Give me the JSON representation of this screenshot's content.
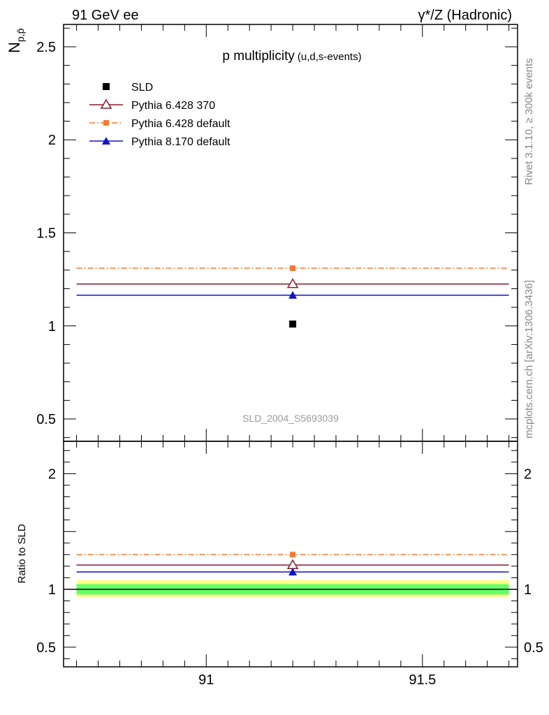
{
  "header": {
    "left": "91 GeV ee",
    "right": "γ*/Z (Hadronic)"
  },
  "side_text": {
    "rivet": "Rivet 3.1.10, ≥ 300k events",
    "mcplots": "mcplots.cern.ch [arXiv:1306.3436]"
  },
  "plot_title": {
    "main": "p multiplicity",
    "sub": "(u,d,s-events)"
  },
  "analysis_id": "SLD_2004_S5693039",
  "chart_data": [
    {
      "panel": "main",
      "type": "scatter",
      "ylabel": "N_{p,p̄}",
      "xlim": [
        90.67,
        91.72
      ],
      "ylim": [
        0.38,
        2.62
      ],
      "yticks": [
        0.5,
        1,
        1.5,
        2,
        2.5
      ],
      "ytick_labels": [
        "0.5",
        "1",
        "1.5",
        "2",
        "2.5"
      ],
      "legend_position": "top-left",
      "series": [
        {
          "name": "SLD",
          "x": [
            91.2
          ],
          "y": [
            1.01
          ],
          "xerr": [
            0,
            0
          ],
          "color": "#000000",
          "marker": "square"
        },
        {
          "name": "Pythia 6.428 370",
          "x": [
            91.2
          ],
          "y": [
            1.225
          ],
          "xerr": [
            91.2,
            91.2
          ],
          "color": "#8b1a2a",
          "marker": "open-triangle",
          "line": "solid"
        },
        {
          "name": "Pythia 6.428 default",
          "x": [
            91.2
          ],
          "y": [
            1.31
          ],
          "xerr": [
            91.2,
            91.2
          ],
          "color": "#f47a2f",
          "marker": "square",
          "line": "dash-dot"
        },
        {
          "name": "Pythia 8.170 default",
          "x": [
            91.2
          ],
          "y": [
            1.165
          ],
          "xerr": [
            91.2,
            91.2
          ],
          "color": "#1111cc",
          "marker": "triangle",
          "line": "solid"
        }
      ]
    },
    {
      "panel": "ratio",
      "type": "scatter",
      "ylabel": "Ratio to SLD",
      "xlim": [
        90.67,
        91.72
      ],
      "ylim": [
        0.33,
        2.28
      ],
      "xticks": [
        91,
        91.5
      ],
      "xtick_labels": [
        "91",
        "91.5"
      ],
      "yticks": [
        0.5,
        1,
        2
      ],
      "ytick_labels": [
        "0.5",
        "1",
        "2"
      ],
      "bands": [
        {
          "name": "stat",
          "low": 0.955,
          "high": 1.045,
          "color": "#66ff66"
        },
        {
          "name": "total",
          "low": 0.935,
          "high": 1.08,
          "color": "#ffff88"
        }
      ],
      "series": [
        {
          "name": "Pythia 6.428 370",
          "x": [
            91.2
          ],
          "y": [
            1.21
          ],
          "color": "#8b1a2a",
          "marker": "open-triangle",
          "line": "solid"
        },
        {
          "name": "Pythia 6.428 default",
          "x": [
            91.2
          ],
          "y": [
            1.3
          ],
          "color": "#f47a2f",
          "marker": "square",
          "line": "dash-dot"
        },
        {
          "name": "Pythia 8.170 default",
          "x": [
            91.2
          ],
          "y": [
            1.15
          ],
          "color": "#1111cc",
          "marker": "triangle",
          "line": "solid"
        }
      ]
    }
  ]
}
